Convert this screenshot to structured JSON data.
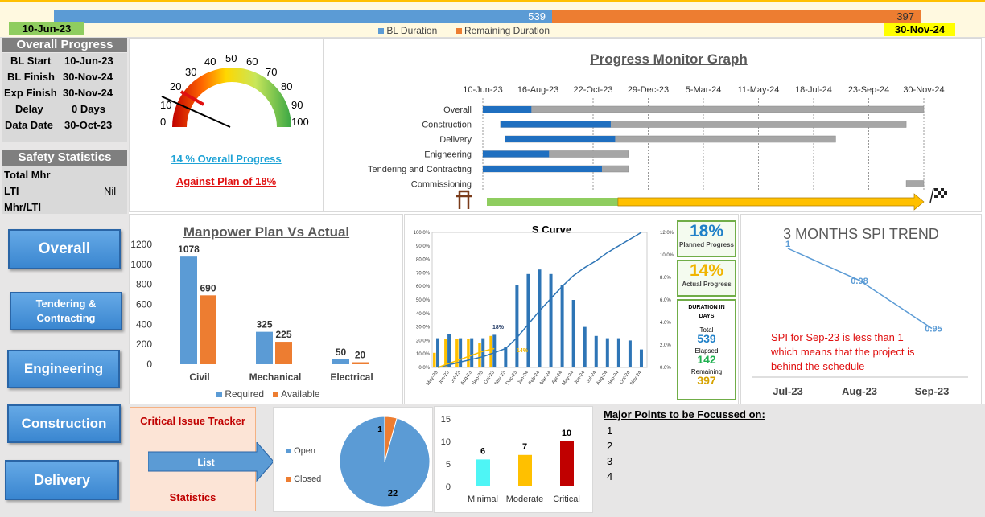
{
  "timeline_bar": {
    "bl_duration": "539",
    "remaining_duration": "397",
    "start_date": "10-Jun-23",
    "end_date": "30-Nov-24",
    "legend_bl": "BL Duration",
    "legend_remaining": "Remaining Duration"
  },
  "overall_progress": {
    "title": "Overall Progress",
    "rows": [
      {
        "label": "BL Start",
        "value": "10-Jun-23"
      },
      {
        "label": "BL Finish",
        "value": "30-Nov-24"
      },
      {
        "label": "Exp Finish",
        "value": "30-Nov-24"
      },
      {
        "label": "Delay",
        "value": "0 Days"
      },
      {
        "label": "Data Date",
        "value": "30-Oct-23"
      }
    ]
  },
  "safety": {
    "title": "Safety Statistics",
    "rows": [
      {
        "label": "Total Mhr",
        "value": ""
      },
      {
        "label": "LTI",
        "value": "Nil"
      },
      {
        "label": "Mhr/LTI",
        "value": ""
      }
    ]
  },
  "gauge": {
    "ticks": [
      "0",
      "10",
      "20",
      "30",
      "40",
      "50",
      "60",
      "70",
      "80",
      "90",
      "100"
    ],
    "progress_text": "14 % Overall Progress",
    "plan_text": "Against Plan of 18%",
    "actual": 14,
    "plan": 18
  },
  "progress_monitor": {
    "title": "Progress Monitor Graph",
    "dates": [
      "10-Jun-23",
      "16-Aug-23",
      "22-Oct-23",
      "29-Dec-23",
      "5-Mar-24",
      "11-May-24",
      "18-Jul-24",
      "23-Sep-24",
      "30-Nov-24"
    ],
    "rows": [
      {
        "label": "Overall",
        "start": 0.0,
        "end": 1.0,
        "done": 0.11
      },
      {
        "label": "Construction",
        "start": 0.04,
        "end": 0.96,
        "done": 0.25
      },
      {
        "label": "Delivery",
        "start": 0.05,
        "end": 0.8,
        "done": 0.25
      },
      {
        "label": "Enigneering",
        "start": 0.0,
        "end": 0.33,
        "done": 0.15
      },
      {
        "label": "Tendering and Contracting",
        "start": 0.0,
        "end": 0.33,
        "done": 0.27
      },
      {
        "label": "Commissioning",
        "start": 0.96,
        "end": 1.0,
        "done": 0.0
      }
    ],
    "elapsed_fraction": 0.3
  },
  "nav": {
    "overall": "Overall",
    "tendering": "Tendering & Contracting",
    "engineering": "Engineering",
    "construction": "Construction",
    "delivery": "Delivery"
  },
  "manpower": {
    "title": "Manpower Plan Vs Actual",
    "legend_required": "Required",
    "legend_available": "Available",
    "colors": {
      "required": "#5b9bd5",
      "available": "#ed7d31"
    }
  },
  "s_curve": {
    "title": "S Curve",
    "planned_pct": "18%",
    "planned_label": "Planned Progress",
    "actual_pct": "14%",
    "actual_label": "Actual Progress",
    "duration_title": "DURATION IN DAYS",
    "total_label": "Total",
    "total": "539",
    "elapsed_label": "Elapsed",
    "elapsed": "142",
    "remaining_label": "Remaining",
    "remaining": "397",
    "marker_plan": "18%",
    "marker_actual": "14%"
  },
  "spi": {
    "title": "3 MONTHS SPI TREND",
    "note": "SPI for Sep-23 is less than 1 which means that the project is behind the schedule"
  },
  "issue_tracker": {
    "title": "Critical Issue Tracker",
    "list": "List",
    "statistics": "Statistics"
  },
  "issue_pie": {
    "legend_open": "Open",
    "legend_closed": "Closed",
    "open": 22,
    "closed": 1
  },
  "severity": {
    "categories": [
      "Minimal",
      "Moderate",
      "Critical"
    ],
    "values": [
      6,
      7,
      10
    ],
    "colors": [
      "#4ef5f5",
      "#ffc000",
      "#c00000"
    ],
    "yticks": [
      "0",
      "5",
      "10",
      "15"
    ]
  },
  "focus": {
    "title": "Major Points to be Focussed on:",
    "items": [
      "1",
      "2",
      "3",
      "4"
    ]
  },
  "chart_data": [
    {
      "type": "bar",
      "title": "Manpower Plan Vs Actual",
      "categories": [
        "Civil",
        "Mechanical",
        "Electrical"
      ],
      "series": [
        {
          "name": "Required",
          "values": [
            1078,
            325,
            50
          ]
        },
        {
          "name": "Available",
          "values": [
            690,
            225,
            20
          ]
        }
      ],
      "yticks": [
        "0",
        "200",
        "400",
        "600",
        "800",
        "1000",
        "1200"
      ],
      "ylim": [
        0,
        1200
      ]
    },
    {
      "type": "line",
      "title": "3 MONTHS SPI TREND",
      "categories": [
        "Jul-23",
        "Aug-23",
        "Sep-23"
      ],
      "values": [
        1,
        0.98,
        0.95
      ],
      "labels": [
        "1",
        "0.98",
        "0.95"
      ]
    },
    {
      "type": "bar",
      "title": "S Curve",
      "categories": [
        "May-23",
        "Jun-23",
        "Jul-23",
        "Aug-23",
        "Sep-23",
        "Oct-23",
        "Nov-23",
        "Dec-23",
        "Jan-24",
        "Feb-24",
        "Mar-24",
        "Apr-24",
        "May-24",
        "Jun-24",
        "Jul-24",
        "Aug-24",
        "Sep-24",
        "Oct-24",
        "Nov-24"
      ],
      "series": [
        {
          "name": "Planned",
          "values": [
            2.6,
            3.0,
            2.6,
            2.6,
            2.6,
            2.9,
            1.8,
            7.3,
            8.3,
            8.7,
            8.3,
            7.3,
            6.0,
            3.6,
            2.8,
            2.6,
            2.6,
            2.4,
            1.6
          ]
        },
        {
          "name": "Actual",
          "values": [
            1.3,
            2.5,
            2.5,
            2.5,
            2.2,
            2.8,
            0,
            0,
            0,
            0,
            0,
            0,
            0,
            0,
            0,
            0,
            0,
            0,
            0
          ]
        }
      ],
      "left_ticks": [
        "0.0%",
        "10.0%",
        "20.0%",
        "30.0%",
        "40.0%",
        "50.0%",
        "60.0%",
        "70.0%",
        "80.0%",
        "90.0%",
        "100.0%"
      ],
      "right_ticks": [
        "0.0%",
        "2.0%",
        "4.0%",
        "6.0%",
        "8.0%",
        "10.0%",
        "12.0%"
      ],
      "cumulative_planned": [
        0,
        2,
        4,
        6,
        8,
        11,
        14,
        22,
        32,
        42,
        51,
        60,
        68,
        74,
        79,
        85,
        90,
        95,
        100
      ],
      "cumulative_actual": [
        0,
        3,
        6,
        9,
        12,
        14
      ]
    }
  ]
}
